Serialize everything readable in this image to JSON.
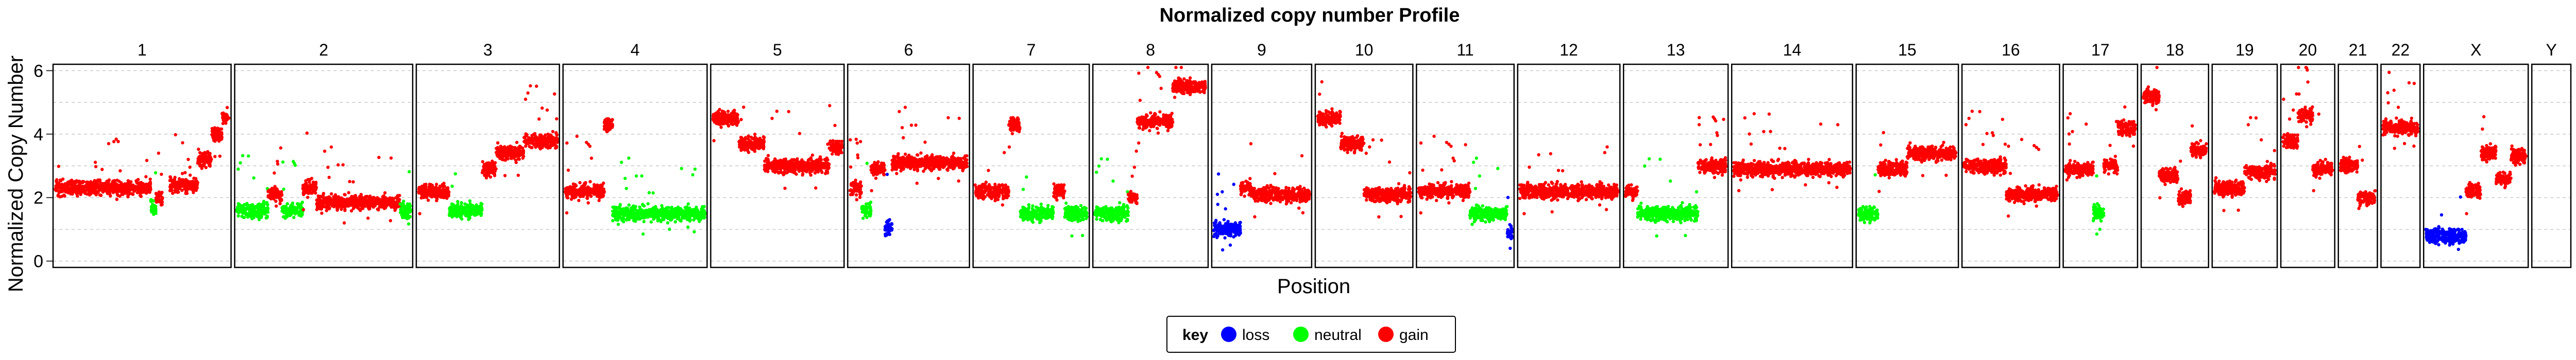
{
  "chart_data": {
    "type": "scatter",
    "title": "Normalized copy number Profile",
    "xlabel": "Position",
    "ylabel": "Normalized Copy Number",
    "ylim": [
      -0.2,
      6.2
    ],
    "yticks": [
      0,
      2,
      4,
      6
    ],
    "grid": true,
    "legend_position": "bottom",
    "legend": {
      "title": "key",
      "items": [
        {
          "label": "loss",
          "color": "#0000ff"
        },
        {
          "label": "neutral",
          "color": "#00ff00"
        },
        {
          "label": "gain",
          "color": "#ff0000"
        }
      ]
    },
    "panels": [
      {
        "chromosome": "1",
        "segments": [
          {
            "start": 0.0,
            "end": 0.55,
            "value": 2.3,
            "key": "gain"
          },
          {
            "start": 0.55,
            "end": 0.58,
            "value": 1.7,
            "key": "neutral"
          },
          {
            "start": 0.58,
            "end": 0.62,
            "value": 2.0,
            "key": "gain"
          },
          {
            "start": 0.66,
            "end": 0.82,
            "value": 2.4,
            "key": "gain"
          },
          {
            "start": 0.82,
            "end": 0.9,
            "value": 3.2,
            "key": "gain"
          },
          {
            "start": 0.9,
            "end": 0.96,
            "value": 4.0,
            "key": "gain"
          },
          {
            "start": 0.96,
            "end": 1.0,
            "value": 4.5,
            "key": "gain"
          }
        ]
      },
      {
        "chromosome": "2",
        "segments": [
          {
            "start": 0.0,
            "end": 0.18,
            "value": 1.6,
            "key": "neutral"
          },
          {
            "start": 0.18,
            "end": 0.26,
            "value": 2.1,
            "key": "gain"
          },
          {
            "start": 0.26,
            "end": 0.38,
            "value": 1.6,
            "key": "neutral"
          },
          {
            "start": 0.38,
            "end": 0.46,
            "value": 2.3,
            "key": "gain"
          },
          {
            "start": 0.46,
            "end": 0.94,
            "value": 1.85,
            "key": "gain"
          },
          {
            "start": 0.94,
            "end": 1.0,
            "value": 1.6,
            "key": "neutral"
          }
        ]
      },
      {
        "chromosome": "3",
        "segments": [
          {
            "start": 0.0,
            "end": 0.22,
            "value": 2.2,
            "key": "gain"
          },
          {
            "start": 0.22,
            "end": 0.46,
            "value": 1.6,
            "key": "neutral"
          },
          {
            "start": 0.46,
            "end": 0.56,
            "value": 2.9,
            "key": "gain"
          },
          {
            "start": 0.56,
            "end": 0.76,
            "value": 3.4,
            "key": "gain"
          },
          {
            "start": 0.76,
            "end": 1.0,
            "value": 3.8,
            "key": "gain"
          }
        ]
      },
      {
        "chromosome": "4",
        "segments": [
          {
            "start": 0.0,
            "end": 0.28,
            "value": 2.2,
            "key": "gain"
          },
          {
            "start": 0.28,
            "end": 0.34,
            "value": 4.3,
            "key": "gain"
          },
          {
            "start": 0.34,
            "end": 1.0,
            "value": 1.5,
            "key": "neutral"
          }
        ]
      },
      {
        "chromosome": "5",
        "segments": [
          {
            "start": 0.0,
            "end": 0.2,
            "value": 4.5,
            "key": "gain"
          },
          {
            "start": 0.2,
            "end": 0.4,
            "value": 3.7,
            "key": "gain"
          },
          {
            "start": 0.4,
            "end": 0.9,
            "value": 3.0,
            "key": "gain"
          },
          {
            "start": 0.9,
            "end": 1.0,
            "value": 3.6,
            "key": "gain"
          }
        ]
      },
      {
        "chromosome": "6",
        "segments": [
          {
            "start": 0.0,
            "end": 0.1,
            "value": 2.3,
            "key": "gain"
          },
          {
            "start": 0.1,
            "end": 0.18,
            "value": 1.6,
            "key": "neutral"
          },
          {
            "start": 0.18,
            "end": 0.3,
            "value": 2.9,
            "key": "gain"
          },
          {
            "start": 0.3,
            "end": 0.36,
            "value": 1.0,
            "key": "loss"
          },
          {
            "start": 0.36,
            "end": 1.0,
            "value": 3.1,
            "key": "gain"
          }
        ]
      },
      {
        "chromosome": "7",
        "segments": [
          {
            "start": 0.0,
            "end": 0.3,
            "value": 2.2,
            "key": "gain"
          },
          {
            "start": 0.3,
            "end": 0.4,
            "value": 4.3,
            "key": "gain"
          },
          {
            "start": 0.4,
            "end": 0.7,
            "value": 1.5,
            "key": "neutral"
          },
          {
            "start": 0.7,
            "end": 0.8,
            "value": 2.2,
            "key": "gain"
          },
          {
            "start": 0.8,
            "end": 1.0,
            "value": 1.5,
            "key": "neutral"
          }
        ]
      },
      {
        "chromosome": "8",
        "segments": [
          {
            "start": 0.0,
            "end": 0.3,
            "value": 1.5,
            "key": "neutral"
          },
          {
            "start": 0.3,
            "end": 0.38,
            "value": 2.0,
            "key": "gain"
          },
          {
            "start": 0.38,
            "end": 0.7,
            "value": 4.4,
            "key": "gain"
          },
          {
            "start": 0.7,
            "end": 1.0,
            "value": 5.5,
            "key": "gain"
          }
        ]
      },
      {
        "chromosome": "9",
        "segments": [
          {
            "start": 0.0,
            "end": 0.28,
            "value": 1.0,
            "key": "loss"
          },
          {
            "start": 0.28,
            "end": 0.4,
            "value": 2.3,
            "key": "gain"
          },
          {
            "start": 0.4,
            "end": 1.0,
            "value": 2.1,
            "key": "gain"
          }
        ]
      },
      {
        "chromosome": "10",
        "segments": [
          {
            "start": 0.0,
            "end": 0.25,
            "value": 4.5,
            "key": "gain"
          },
          {
            "start": 0.25,
            "end": 0.5,
            "value": 3.7,
            "key": "gain"
          },
          {
            "start": 0.5,
            "end": 1.0,
            "value": 2.1,
            "key": "gain"
          }
        ]
      },
      {
        "chromosome": "11",
        "segments": [
          {
            "start": 0.0,
            "end": 0.55,
            "value": 2.2,
            "key": "gain"
          },
          {
            "start": 0.55,
            "end": 0.95,
            "value": 1.5,
            "key": "neutral"
          },
          {
            "start": 0.95,
            "end": 1.0,
            "value": 0.9,
            "key": "loss"
          }
        ]
      },
      {
        "chromosome": "12",
        "segments": [
          {
            "start": 0.0,
            "end": 1.0,
            "value": 2.2,
            "key": "gain"
          }
        ]
      },
      {
        "chromosome": "13",
        "segments": [
          {
            "start": 0.0,
            "end": 0.12,
            "value": 2.2,
            "key": "gain"
          },
          {
            "start": 0.12,
            "end": 0.72,
            "value": 1.5,
            "key": "neutral"
          },
          {
            "start": 0.72,
            "end": 1.0,
            "value": 3.0,
            "key": "gain"
          }
        ]
      },
      {
        "chromosome": "14",
        "segments": [
          {
            "start": 0.0,
            "end": 1.0,
            "value": 2.9,
            "key": "gain"
          }
        ]
      },
      {
        "chromosome": "15",
        "segments": [
          {
            "start": 0.0,
            "end": 0.2,
            "value": 1.5,
            "key": "neutral"
          },
          {
            "start": 0.2,
            "end": 0.5,
            "value": 2.9,
            "key": "gain"
          },
          {
            "start": 0.5,
            "end": 1.0,
            "value": 3.4,
            "key": "gain"
          }
        ]
      },
      {
        "chromosome": "16",
        "segments": [
          {
            "start": 0.0,
            "end": 0.45,
            "value": 3.0,
            "key": "gain"
          },
          {
            "start": 0.45,
            "end": 1.0,
            "value": 2.1,
            "key": "gain"
          }
        ]
      },
      {
        "chromosome": "17",
        "segments": [
          {
            "start": 0.0,
            "end": 0.4,
            "value": 2.9,
            "key": "gain"
          },
          {
            "start": 0.4,
            "end": 0.55,
            "value": 1.5,
            "key": "neutral"
          },
          {
            "start": 0.55,
            "end": 0.75,
            "value": 3.0,
            "key": "gain"
          },
          {
            "start": 0.75,
            "end": 1.0,
            "value": 4.2,
            "key": "gain"
          }
        ]
      },
      {
        "chromosome": "18",
        "segments": [
          {
            "start": 0.0,
            "end": 0.25,
            "value": 5.2,
            "key": "gain"
          },
          {
            "start": 0.25,
            "end": 0.55,
            "value": 2.7,
            "key": "gain"
          },
          {
            "start": 0.55,
            "end": 0.75,
            "value": 2.0,
            "key": "gain"
          },
          {
            "start": 0.75,
            "end": 1.0,
            "value": 3.5,
            "key": "gain"
          }
        ]
      },
      {
        "chromosome": "19",
        "segments": [
          {
            "start": 0.0,
            "end": 0.5,
            "value": 2.3,
            "key": "gain"
          },
          {
            "start": 0.5,
            "end": 1.0,
            "value": 2.8,
            "key": "gain"
          }
        ]
      },
      {
        "chromosome": "20",
        "segments": [
          {
            "start": 0.0,
            "end": 0.3,
            "value": 3.8,
            "key": "gain"
          },
          {
            "start": 0.3,
            "end": 0.6,
            "value": 4.6,
            "key": "gain"
          },
          {
            "start": 0.6,
            "end": 1.0,
            "value": 2.9,
            "key": "gain"
          }
        ]
      },
      {
        "chromosome": "21",
        "segments": [
          {
            "start": 0.0,
            "end": 0.5,
            "value": 3.0,
            "key": "gain"
          },
          {
            "start": 0.5,
            "end": 1.0,
            "value": 2.0,
            "key": "gain"
          }
        ]
      },
      {
        "chromosome": "22",
        "segments": [
          {
            "start": 0.0,
            "end": 1.0,
            "value": 4.2,
            "key": "gain"
          }
        ]
      },
      {
        "chromosome": "X",
        "segments": [
          {
            "start": 0.0,
            "end": 0.4,
            "value": 0.8,
            "key": "loss"
          },
          {
            "start": 0.4,
            "end": 0.55,
            "value": 2.2,
            "key": "gain"
          },
          {
            "start": 0.55,
            "end": 0.7,
            "value": 3.4,
            "key": "gain"
          },
          {
            "start": 0.7,
            "end": 0.85,
            "value": 2.6,
            "key": "gain"
          },
          {
            "start": 0.85,
            "end": 1.0,
            "value": 3.3,
            "key": "gain"
          }
        ]
      },
      {
        "chromosome": "Y",
        "segments": []
      }
    ]
  }
}
